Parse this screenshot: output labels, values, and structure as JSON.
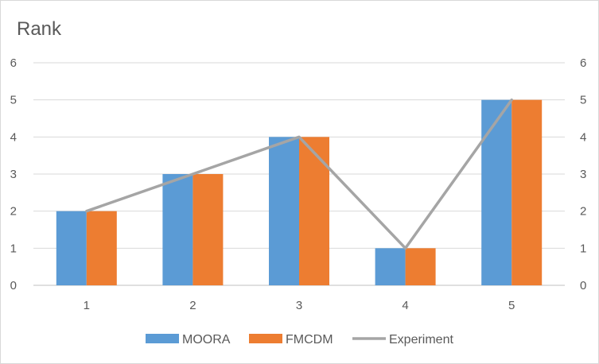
{
  "chart_data": {
    "type": "bar",
    "ylabel": "Rank",
    "categories": [
      "1",
      "2",
      "3",
      "4",
      "5"
    ],
    "ylim": [
      0,
      6
    ],
    "y_ticks": [
      "0",
      "1",
      "2",
      "3",
      "4",
      "5",
      "6"
    ],
    "secondary_ylim": [
      0,
      6
    ],
    "grid": true,
    "legend_position": "bottom",
    "series": [
      {
        "name": "MOORA",
        "kind": "bar",
        "color": "#5b9bd5",
        "values": [
          2,
          3,
          4,
          1,
          5
        ]
      },
      {
        "name": "FMCDM",
        "kind": "bar",
        "color": "#ed7d31",
        "values": [
          2,
          3,
          4,
          1,
          5
        ]
      },
      {
        "name": "Experiment",
        "kind": "line",
        "color": "#a5a5a5",
        "values": [
          2,
          3,
          4,
          1,
          5
        ]
      }
    ]
  }
}
